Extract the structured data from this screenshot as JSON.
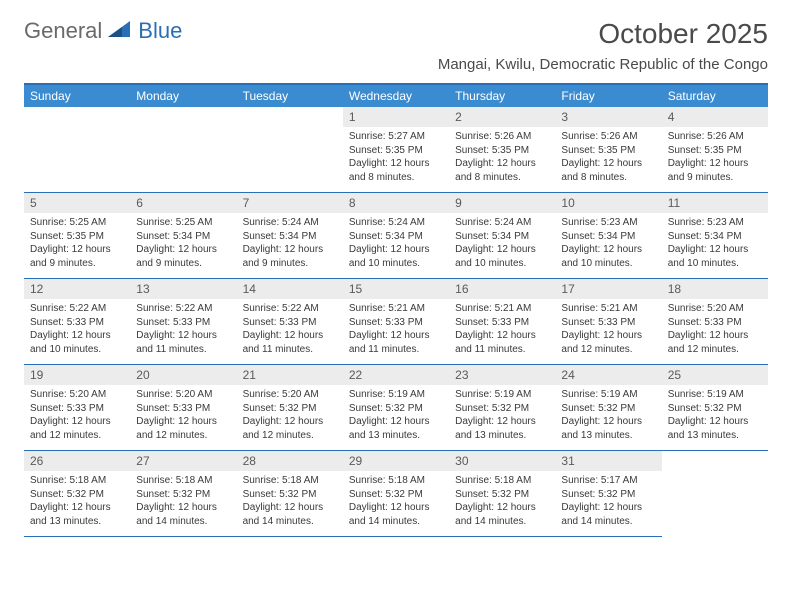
{
  "logo": {
    "gray": "General",
    "blue": "Blue"
  },
  "title": "October 2025",
  "location": "Mangai, Kwilu, Democratic Republic of the Congo",
  "colors": {
    "header_bg": "#3b8bd0",
    "header_text": "#ffffff",
    "border": "#2a6fb5",
    "daynum_bg": "#ececec",
    "text": "#3a3a3a"
  },
  "day_headers": [
    "Sunday",
    "Monday",
    "Tuesday",
    "Wednesday",
    "Thursday",
    "Friday",
    "Saturday"
  ],
  "leading_blanks": 3,
  "days": [
    {
      "n": "1",
      "sunrise": "5:27 AM",
      "sunset": "5:35 PM",
      "daylight": "12 hours and 8 minutes."
    },
    {
      "n": "2",
      "sunrise": "5:26 AM",
      "sunset": "5:35 PM",
      "daylight": "12 hours and 8 minutes."
    },
    {
      "n": "3",
      "sunrise": "5:26 AM",
      "sunset": "5:35 PM",
      "daylight": "12 hours and 8 minutes."
    },
    {
      "n": "4",
      "sunrise": "5:26 AM",
      "sunset": "5:35 PM",
      "daylight": "12 hours and 9 minutes."
    },
    {
      "n": "5",
      "sunrise": "5:25 AM",
      "sunset": "5:35 PM",
      "daylight": "12 hours and 9 minutes."
    },
    {
      "n": "6",
      "sunrise": "5:25 AM",
      "sunset": "5:34 PM",
      "daylight": "12 hours and 9 minutes."
    },
    {
      "n": "7",
      "sunrise": "5:24 AM",
      "sunset": "5:34 PM",
      "daylight": "12 hours and 9 minutes."
    },
    {
      "n": "8",
      "sunrise": "5:24 AM",
      "sunset": "5:34 PM",
      "daylight": "12 hours and 10 minutes."
    },
    {
      "n": "9",
      "sunrise": "5:24 AM",
      "sunset": "5:34 PM",
      "daylight": "12 hours and 10 minutes."
    },
    {
      "n": "10",
      "sunrise": "5:23 AM",
      "sunset": "5:34 PM",
      "daylight": "12 hours and 10 minutes."
    },
    {
      "n": "11",
      "sunrise": "5:23 AM",
      "sunset": "5:34 PM",
      "daylight": "12 hours and 10 minutes."
    },
    {
      "n": "12",
      "sunrise": "5:22 AM",
      "sunset": "5:33 PM",
      "daylight": "12 hours and 10 minutes."
    },
    {
      "n": "13",
      "sunrise": "5:22 AM",
      "sunset": "5:33 PM",
      "daylight": "12 hours and 11 minutes."
    },
    {
      "n": "14",
      "sunrise": "5:22 AM",
      "sunset": "5:33 PM",
      "daylight": "12 hours and 11 minutes."
    },
    {
      "n": "15",
      "sunrise": "5:21 AM",
      "sunset": "5:33 PM",
      "daylight": "12 hours and 11 minutes."
    },
    {
      "n": "16",
      "sunrise": "5:21 AM",
      "sunset": "5:33 PM",
      "daylight": "12 hours and 11 minutes."
    },
    {
      "n": "17",
      "sunrise": "5:21 AM",
      "sunset": "5:33 PM",
      "daylight": "12 hours and 12 minutes."
    },
    {
      "n": "18",
      "sunrise": "5:20 AM",
      "sunset": "5:33 PM",
      "daylight": "12 hours and 12 minutes."
    },
    {
      "n": "19",
      "sunrise": "5:20 AM",
      "sunset": "5:33 PM",
      "daylight": "12 hours and 12 minutes."
    },
    {
      "n": "20",
      "sunrise": "5:20 AM",
      "sunset": "5:33 PM",
      "daylight": "12 hours and 12 minutes."
    },
    {
      "n": "21",
      "sunrise": "5:20 AM",
      "sunset": "5:32 PM",
      "daylight": "12 hours and 12 minutes."
    },
    {
      "n": "22",
      "sunrise": "5:19 AM",
      "sunset": "5:32 PM",
      "daylight": "12 hours and 13 minutes."
    },
    {
      "n": "23",
      "sunrise": "5:19 AM",
      "sunset": "5:32 PM",
      "daylight": "12 hours and 13 minutes."
    },
    {
      "n": "24",
      "sunrise": "5:19 AM",
      "sunset": "5:32 PM",
      "daylight": "12 hours and 13 minutes."
    },
    {
      "n": "25",
      "sunrise": "5:19 AM",
      "sunset": "5:32 PM",
      "daylight": "12 hours and 13 minutes."
    },
    {
      "n": "26",
      "sunrise": "5:18 AM",
      "sunset": "5:32 PM",
      "daylight": "12 hours and 13 minutes."
    },
    {
      "n": "27",
      "sunrise": "5:18 AM",
      "sunset": "5:32 PM",
      "daylight": "12 hours and 14 minutes."
    },
    {
      "n": "28",
      "sunrise": "5:18 AM",
      "sunset": "5:32 PM",
      "daylight": "12 hours and 14 minutes."
    },
    {
      "n": "29",
      "sunrise": "5:18 AM",
      "sunset": "5:32 PM",
      "daylight": "12 hours and 14 minutes."
    },
    {
      "n": "30",
      "sunrise": "5:18 AM",
      "sunset": "5:32 PM",
      "daylight": "12 hours and 14 minutes."
    },
    {
      "n": "31",
      "sunrise": "5:17 AM",
      "sunset": "5:32 PM",
      "daylight": "12 hours and 14 minutes."
    }
  ],
  "labels": {
    "sunrise": "Sunrise: ",
    "sunset": "Sunset: ",
    "daylight": "Daylight: "
  }
}
